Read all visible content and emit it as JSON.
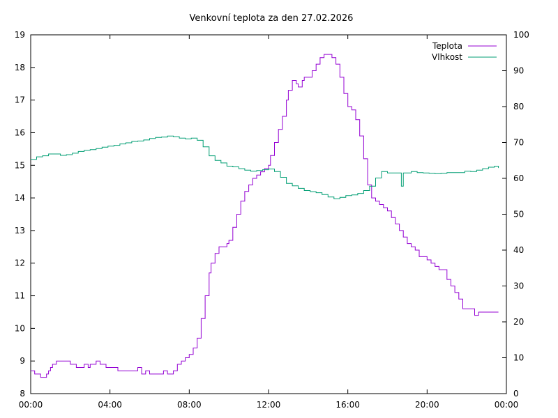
{
  "chart_data": {
    "type": "line",
    "title": "Venkovní teplota za den 27.02.2026",
    "xlabel": "",
    "ylabel": "",
    "y2label": "",
    "grid": false,
    "legend_position": "top-right",
    "x_unit": "hours",
    "xlim": [
      0,
      24
    ],
    "ylim": [
      8,
      19
    ],
    "y2lim": [
      0,
      100
    ],
    "x_ticks": [
      "00:00",
      "04:00",
      "08:00",
      "12:00",
      "16:00",
      "20:00",
      "00:00"
    ],
    "y_ticks": [
      "8",
      "9",
      "10",
      "11",
      "12",
      "13",
      "14",
      "15",
      "16",
      "17",
      "18",
      "19"
    ],
    "y2_ticks": [
      "0",
      "10",
      "20",
      "30",
      "40",
      "50",
      "60",
      "70",
      "80",
      "90",
      "100"
    ],
    "series": [
      {
        "name": "Teplota",
        "color": "#9400d3",
        "axis": "left",
        "x": [
          0.0,
          0.2,
          0.4,
          0.5,
          0.6,
          0.7,
          0.8,
          0.9,
          1.0,
          1.1,
          1.3,
          1.5,
          1.7,
          1.9,
          2.0,
          2.1,
          2.3,
          2.5,
          2.7,
          2.9,
          3.0,
          3.1,
          3.3,
          3.5,
          3.6,
          3.8,
          4.0,
          4.2,
          4.4,
          4.6,
          4.8,
          5.0,
          5.2,
          5.4,
          5.6,
          5.8,
          6.0,
          6.1,
          6.3,
          6.5,
          6.7,
          6.9,
          7.0,
          7.2,
          7.4,
          7.6,
          7.8,
          8.0,
          8.2,
          8.4,
          8.6,
          8.8,
          9.0,
          9.1,
          9.3,
          9.5,
          9.7,
          9.9,
          10.0,
          10.2,
          10.4,
          10.6,
          10.8,
          11.0,
          11.2,
          11.4,
          11.6,
          11.8,
          12.0,
          12.1,
          12.3,
          12.5,
          12.7,
          12.9,
          13.0,
          13.2,
          13.4,
          13.5,
          13.6,
          13.7,
          13.8,
          14.0,
          14.2,
          14.4,
          14.6,
          14.8,
          15.0,
          15.2,
          15.4,
          15.6,
          15.8,
          16.0,
          16.2,
          16.4,
          16.6,
          16.8,
          17.0,
          17.2,
          17.4,
          17.6,
          17.8,
          18.0,
          18.2,
          18.4,
          18.6,
          18.8,
          19.0,
          19.2,
          19.4,
          19.6,
          19.8,
          20.0,
          20.2,
          20.4,
          20.6,
          20.8,
          21.0,
          21.2,
          21.4,
          21.6,
          21.8,
          22.0,
          22.2,
          22.4,
          22.6,
          22.8,
          23.0,
          23.2,
          23.4,
          23.6
        ],
        "values": [
          8.7,
          8.6,
          8.6,
          8.5,
          8.5,
          8.5,
          8.6,
          8.7,
          8.8,
          8.9,
          9.0,
          9.0,
          9.0,
          9.0,
          8.9,
          8.9,
          8.8,
          8.8,
          8.9,
          8.8,
          8.9,
          8.9,
          9.0,
          8.9,
          8.9,
          8.8,
          8.8,
          8.8,
          8.7,
          8.7,
          8.7,
          8.7,
          8.7,
          8.8,
          8.6,
          8.7,
          8.6,
          8.6,
          8.6,
          8.6,
          8.7,
          8.6,
          8.6,
          8.7,
          8.9,
          9.0,
          9.1,
          9.2,
          9.4,
          9.7,
          10.3,
          11.0,
          11.7,
          12.0,
          12.3,
          12.5,
          12.5,
          12.6,
          12.7,
          13.1,
          13.5,
          13.9,
          14.2,
          14.4,
          14.6,
          14.7,
          14.8,
          14.9,
          15.0,
          15.3,
          15.7,
          16.1,
          16.5,
          17.0,
          17.3,
          17.6,
          17.5,
          17.4,
          17.4,
          17.6,
          17.7,
          17.7,
          17.9,
          18.1,
          18.3,
          18.4,
          18.4,
          18.3,
          18.1,
          17.7,
          17.2,
          16.8,
          16.7,
          16.4,
          15.9,
          15.2,
          14.4,
          14.0,
          13.9,
          13.8,
          13.7,
          13.6,
          13.4,
          13.2,
          13.0,
          12.8,
          12.6,
          12.5,
          12.4,
          12.2,
          12.2,
          12.1,
          12.0,
          11.9,
          11.8,
          11.8,
          11.5,
          11.3,
          11.1,
          10.9,
          10.6,
          10.6,
          10.6,
          10.4,
          10.5,
          10.5,
          10.5,
          10.5,
          10.5,
          10.5
        ],
        "y2": null
      },
      {
        "name": "Vlhkost",
        "color": "#009e73",
        "axis": "right",
        "x": [
          0.0,
          0.3,
          0.6,
          0.9,
          1.2,
          1.5,
          1.8,
          2.1,
          2.4,
          2.7,
          3.0,
          3.3,
          3.6,
          3.9,
          4.2,
          4.5,
          4.8,
          5.1,
          5.4,
          5.7,
          6.0,
          6.3,
          6.6,
          6.9,
          7.2,
          7.5,
          7.8,
          8.1,
          8.4,
          8.7,
          9.0,
          9.3,
          9.6,
          9.9,
          10.2,
          10.5,
          10.8,
          11.1,
          11.4,
          11.7,
          12.0,
          12.3,
          12.6,
          12.9,
          13.2,
          13.5,
          13.8,
          14.1,
          14.4,
          14.7,
          15.0,
          15.3,
          15.6,
          15.9,
          16.2,
          16.5,
          16.8,
          17.1,
          17.4,
          17.7,
          18.0,
          18.3,
          18.6,
          18.7,
          18.8,
          19.2,
          19.5,
          19.8,
          20.1,
          20.4,
          20.7,
          21.0,
          21.3,
          21.6,
          21.9,
          22.2,
          22.5,
          22.8,
          23.1,
          23.4,
          23.6
        ],
        "values": [
          65.3,
          66.0,
          66.3,
          66.8,
          66.8,
          66.4,
          66.6,
          67.0,
          67.5,
          67.8,
          68.0,
          68.3,
          68.7,
          69.0,
          69.2,
          69.6,
          69.9,
          70.3,
          70.4,
          70.7,
          71.1,
          71.4,
          71.5,
          71.8,
          71.6,
          71.2,
          71.0,
          71.2,
          70.6,
          68.8,
          66.3,
          65.0,
          64.3,
          63.4,
          63.2,
          62.7,
          62.3,
          62.0,
          62.2,
          62.4,
          62.6,
          61.9,
          60.3,
          58.6,
          57.9,
          57.2,
          56.6,
          56.3,
          56.0,
          55.5,
          54.8,
          54.3,
          54.7,
          55.2,
          55.4,
          55.8,
          56.6,
          57.8,
          60.1,
          61.9,
          61.5,
          61.5,
          61.5,
          57.8,
          61.5,
          61.9,
          61.6,
          61.5,
          61.4,
          61.3,
          61.4,
          61.6,
          61.6,
          61.6,
          62.0,
          61.9,
          62.3,
          62.7,
          63.1,
          63.4,
          62.9
        ],
        "y2": null
      }
    ]
  }
}
